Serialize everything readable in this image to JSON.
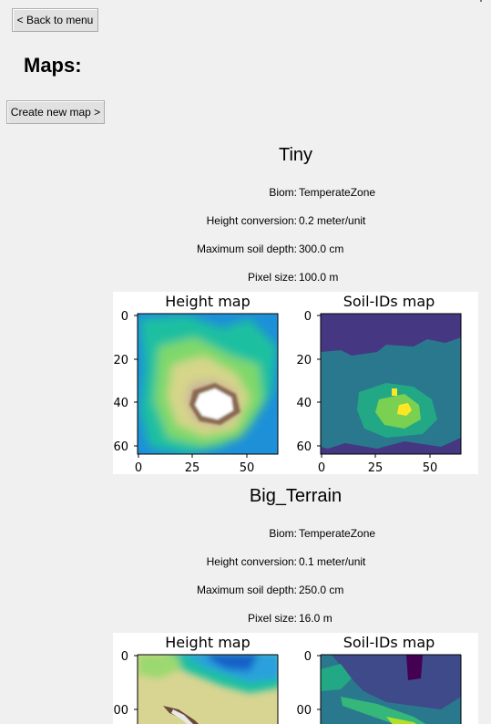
{
  "header": {
    "back_label": "< Back to menu",
    "title": "Maps:",
    "create_label": "Create new map >"
  },
  "maps": [
    {
      "name": "Tiny",
      "info": [
        {
          "label": "Biom:",
          "value": "TemperateZone"
        },
        {
          "label": "Height conversion:",
          "value": "0.2 meter/unit"
        },
        {
          "label": "Maximum soil depth:",
          "value": "300.0 cm"
        },
        {
          "label": "Pixel size:",
          "value": "100.0 m"
        }
      ],
      "plots": {
        "height_title": "Height map",
        "soil_title": "Soil-IDs map",
        "y_ticks": [
          "0",
          "20",
          "40",
          "60"
        ],
        "x_ticks": [
          "0",
          "25",
          "50"
        ]
      }
    },
    {
      "name": "Big_Terrain",
      "info": [
        {
          "label": "Biom:",
          "value": "TemperateZone"
        },
        {
          "label": "Height conversion:",
          "value": "0.1 meter/unit"
        },
        {
          "label": "Maximum soil depth:",
          "value": "250.0 cm"
        },
        {
          "label": "Pixel size:",
          "value": "16.0 m"
        }
      ],
      "plots": {
        "height_title": "Height map",
        "soil_title": "Soil-IDs map",
        "y_ticks": [
          "0",
          "00"
        ]
      }
    }
  ]
}
